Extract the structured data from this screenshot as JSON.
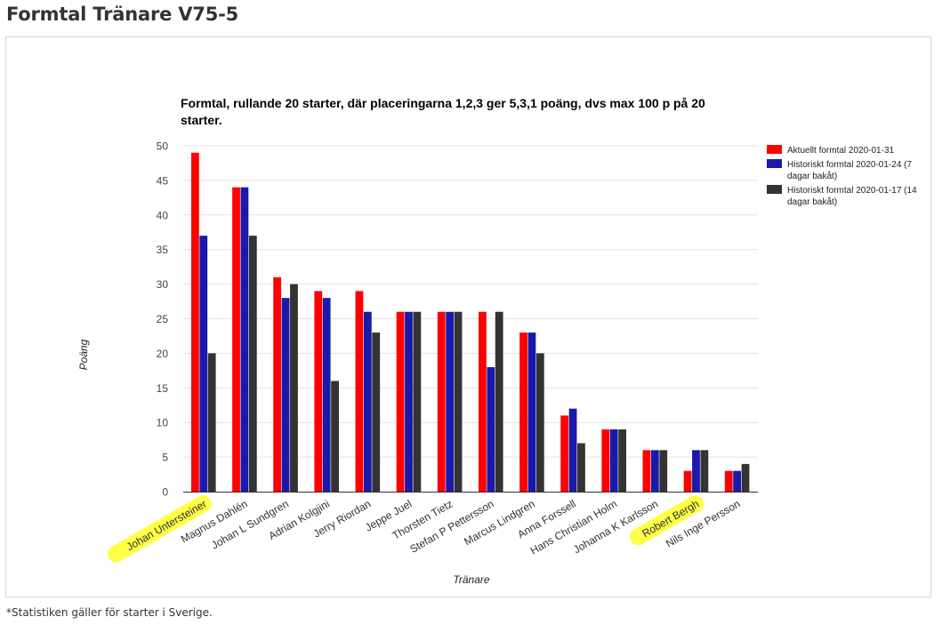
{
  "page": {
    "title": "Formtal Tränare V75-5",
    "footnote": "*Statistiken gäller för starter i Sverige."
  },
  "chart_data": {
    "type": "bar",
    "title": "Formtal, rullande 20 starter, där placeringarna 1,2,3 ger 5,3,1 poäng, dvs max 100 p på 20 starter.",
    "title_lines": [
      "Formtal, rullande 20 starter, där placeringarna 1,2,3 ger 5,3,1 poäng, dvs max 100 p på 20",
      "starter."
    ],
    "xlabel": "Tränare",
    "ylabel": "Poäng",
    "ylim": [
      0,
      50
    ],
    "yticks": [
      0,
      5,
      10,
      15,
      20,
      25,
      30,
      35,
      40,
      45,
      50
    ],
    "grid": true,
    "legend_position": "right",
    "categories": [
      "Johan Untersteiner",
      "Magnus Dahlén",
      "Johan L Sundgren",
      "Adrian Kolgjini",
      "Jerry Riordan",
      "Jeppe Juel",
      "Thorsten Tietz",
      "Stefan P Pettersson",
      "Marcus Lindgren",
      "Anna Forssell",
      "Hans Christian Holm",
      "Johanna K Karlsson",
      "Robert Bergh",
      "Nils Inge Persson"
    ],
    "highlighted_categories": [
      "Johan Untersteiner",
      "Robert Bergh"
    ],
    "highlight_color": "#ffff33",
    "series": [
      {
        "name": "Aktuellt formtal 2020-01-31",
        "legend_lines": [
          "Aktuellt formtal 2020-01-31"
        ],
        "color": "#ff0000",
        "values": [
          49,
          44,
          31,
          29,
          29,
          26,
          26,
          26,
          23,
          11,
          9,
          6,
          3,
          3
        ]
      },
      {
        "name": "Historiskt formtal 2020-01-24 (7 dagar bakåt)",
        "legend_lines": [
          "Historiskt formtal 2020-01-24 (7",
          "dagar bakåt)"
        ],
        "color": "#1a1aaa",
        "values": [
          37,
          44,
          28,
          28,
          26,
          26,
          26,
          18,
          23,
          12,
          9,
          6,
          6,
          3
        ]
      },
      {
        "name": "Historiskt formtal 2020-01-17 (14 dagar bakåt)",
        "legend_lines": [
          "Historiskt formtal 2020-01-17 (14",
          "dagar bakåt)"
        ],
        "color": "#333333",
        "values": [
          20,
          37,
          30,
          16,
          23,
          26,
          26,
          26,
          20,
          7,
          9,
          6,
          6,
          4
        ]
      }
    ]
  }
}
